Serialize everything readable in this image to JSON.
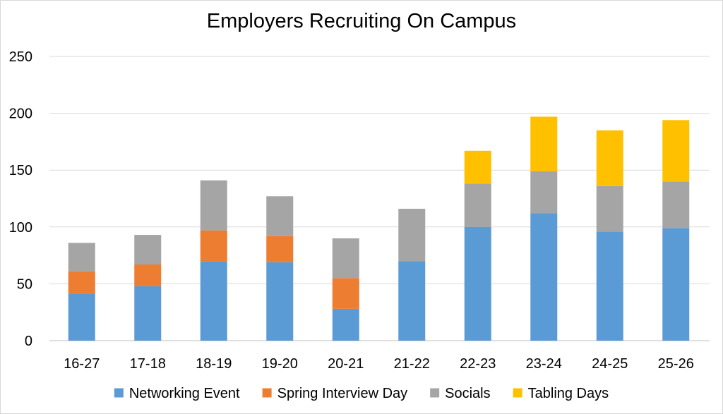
{
  "chart_data": {
    "type": "bar",
    "stacked": true,
    "title": "Employers Recruiting On Campus",
    "xlabel": "",
    "ylabel": "",
    "ylim": [
      0,
      250
    ],
    "yticks": [
      0,
      50,
      100,
      150,
      200,
      250
    ],
    "grid": true,
    "legend_position": "bottom",
    "categories": [
      "16-27",
      "17-18",
      "18-19",
      "19-20",
      "20-21",
      "21-22",
      "22-23",
      "23-24",
      "24-25",
      "25-26"
    ],
    "series": [
      {
        "name": "Networking Event",
        "color": "#5B9BD5",
        "values": [
          41,
          48,
          70,
          69,
          28,
          70,
          100,
          112,
          96,
          99
        ]
      },
      {
        "name": "Spring Interview Day",
        "color": "#ED7D31",
        "values": [
          20,
          19,
          27,
          23,
          27,
          0,
          0,
          0,
          0,
          0
        ]
      },
      {
        "name": "Socials",
        "color": "#A5A5A5",
        "values": [
          25,
          26,
          44,
          35,
          35,
          46,
          38,
          37,
          40,
          41
        ]
      },
      {
        "name": "Tabling Days",
        "color": "#FFC000",
        "values": [
          0,
          0,
          0,
          0,
          0,
          0,
          29,
          48,
          49,
          54
        ]
      }
    ]
  }
}
